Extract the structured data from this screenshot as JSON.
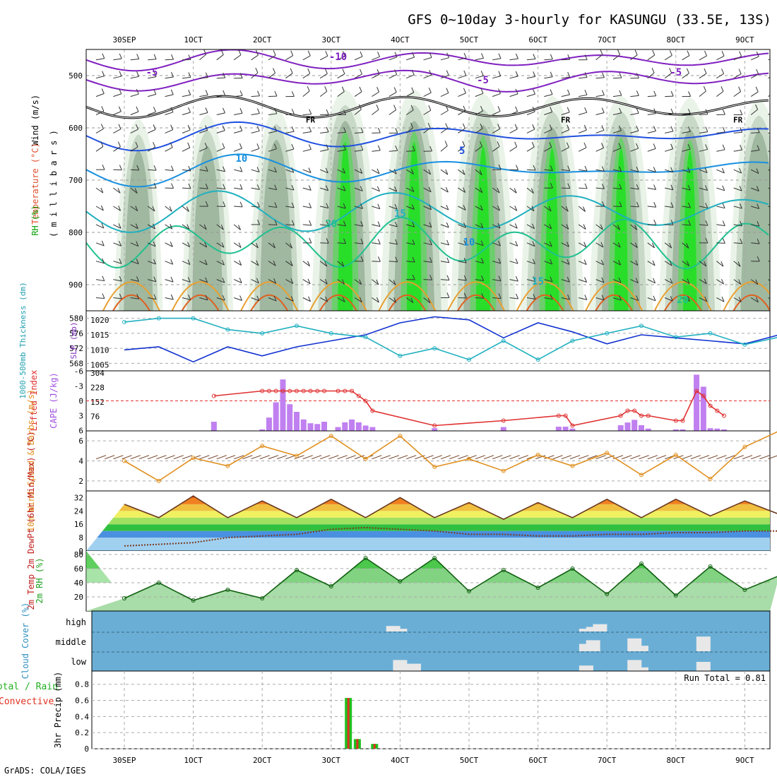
{
  "title": "GFS 0~10day 3-hourly for KASUNGU (33.5E, 13S)",
  "credit": "GrADS: COLA/IGES",
  "colors": {
    "rh_green_dark": "#00cc00",
    "rh_green_mid": "#66cc66",
    "rh_grey": "#b8c6b8",
    "temp_warm": "#e89000",
    "temp_cool": "#2040d0",
    "temp_cold": "#8020c0",
    "slp": "#1030d0",
    "thickness": "#20b0c0",
    "cape": "#c080f0",
    "lifted_index": "#e03030",
    "wind_speed": "#e09020",
    "cloud_bg": "#6aaed6",
    "precip_total": "#20c020",
    "precip_conv": "#e03020"
  },
  "x_axis": {
    "top_labels": [
      "30SEP",
      "1OCT",
      "2OCT",
      "3OCT",
      "4OCT",
      "5OCT",
      "6OCT",
      "7OCT",
      "8OCT",
      "9OCT"
    ],
    "bottom_labels": [
      "30SEP",
      "1OCT",
      "2OCT",
      "3OCT",
      "4OCT",
      "5OCT",
      "6OCT",
      "7OCT",
      "8OCT",
      "9OCT"
    ]
  },
  "chart_data": [
    {
      "type": "heatmap",
      "panel": "upper_air",
      "ylabel_parts": [
        "Wind (m/s)",
        "Temperature (°C)",
        "RH (%)",
        "( m i l l i b a r s )"
      ],
      "y_ticks": [
        "500",
        "600",
        "700",
        "800",
        "900"
      ],
      "ylim": [
        950,
        450
      ],
      "contour_labels": [
        {
          "text": "-10",
          "day": 3.1,
          "p": 470
        },
        {
          "text": "-5",
          "day": 0.4,
          "p": 500
        },
        {
          "text": "-5",
          "day": 5.2,
          "p": 515
        },
        {
          "text": "-5",
          "day": 8.0,
          "p": 500
        },
        {
          "text": "FR",
          "day": 2.7,
          "p": 590
        },
        {
          "text": "FR",
          "day": 6.4,
          "p": 590
        },
        {
          "text": "FR",
          "day": 8.9,
          "p": 590
        },
        {
          "text": "10",
          "day": 1.7,
          "p": 665
        },
        {
          "text": "5",
          "day": 4.9,
          "p": 650
        },
        {
          "text": "15",
          "day": 4.0,
          "p": 770
        },
        {
          "text": "10",
          "day": 5.0,
          "p": 825
        },
        {
          "text": "20",
          "day": 3.0,
          "p": 790
        },
        {
          "text": "15",
          "day": 6.0,
          "p": 900
        },
        {
          "text": "20",
          "day": 8.1,
          "p": 935
        }
      ]
    },
    {
      "type": "line",
      "panel": "slp_thickness",
      "ylabel_left": "1000-500mb Thickness (dm)",
      "ylabel_right": "SLP (mb)",
      "left_ticks": [
        "580",
        "576",
        "572",
        "568"
      ],
      "right_ticks": [
        "1020",
        "1015",
        "1010",
        "1005"
      ],
      "x": [
        0,
        0.5,
        1,
        1.5,
        2,
        2.5,
        3,
        3.5,
        4,
        4.5,
        5,
        5.5,
        6,
        6.5,
        7,
        7.5,
        8,
        8.5,
        9,
        9.5
      ],
      "series": [
        {
          "name": "SLP (mb)",
          "values": [
            1010,
            1011,
            1006,
            1011,
            1008,
            1011,
            1013,
            1015,
            1019,
            1021,
            1020,
            1014,
            1019,
            1016,
            1012,
            1015,
            1014,
            1013,
            1012,
            1015
          ]
        },
        {
          "name": "Thickness (dm)",
          "values": [
            579,
            580,
            580,
            577,
            576,
            578,
            576,
            575,
            570,
            572,
            569,
            574,
            569,
            574,
            576,
            578,
            575,
            576,
            573,
            575
          ]
        }
      ]
    },
    {
      "type": "bar",
      "panel": "cape_li",
      "ylabel_left": "Lifted Index",
      "ylabel_right": "CAPE (J/kg)",
      "left_ticks": [
        "-6",
        "-3",
        "0",
        "3",
        "6"
      ],
      "right_ticks": [
        "304",
        "228",
        "152",
        "76"
      ],
      "categories": [
        1.3,
        2.0,
        2.1,
        2.2,
        2.3,
        2.4,
        2.5,
        2.6,
        2.7,
        2.8,
        2.9,
        3.1,
        3.2,
        3.3,
        3.4,
        3.5,
        3.6,
        4.5,
        5.5,
        6.3,
        6.4,
        6.5,
        7.2,
        7.3,
        7.4,
        7.5,
        7.6,
        8.0,
        8.1,
        8.3,
        8.4,
        8.5,
        8.6,
        8.7
      ],
      "series": [
        {
          "name": "CAPE (J/kg)",
          "values": [
            48,
            8,
            70,
            150,
            270,
            140,
            100,
            60,
            40,
            36,
            48,
            20,
            45,
            60,
            45,
            28,
            20,
            14,
            20,
            22,
            22,
            12,
            30,
            44,
            58,
            30,
            12,
            8,
            8,
            295,
            232,
            14,
            12,
            8
          ]
        },
        {
          "name": "Lifted Index",
          "values": [
            -1,
            -2,
            -2,
            -2,
            -2,
            -2,
            -2,
            -2,
            -2,
            -2,
            -2,
            -2,
            -2,
            -2,
            -1,
            0,
            2,
            5,
            4,
            3,
            3,
            5,
            3,
            2,
            2,
            3,
            3,
            4,
            4,
            -2,
            -1,
            1,
            2,
            3
          ]
        }
      ]
    },
    {
      "type": "line",
      "panel": "wind10m",
      "ylabel": "10m Wind Speed & Barbs (m/s)",
      "y_ticks": [
        "6",
        "4",
        "2"
      ],
      "ylim": [
        1,
        7
      ],
      "x": [
        0,
        0.5,
        1,
        1.5,
        2,
        2.5,
        3,
        3.5,
        4,
        4.5,
        5,
        5.5,
        6,
        6.5,
        7,
        7.5,
        8,
        8.5,
        9,
        9.5
      ],
      "series": [
        {
          "name": "Wind speed",
          "values": [
            4,
            2,
            4.3,
            3.5,
            5.5,
            4.5,
            6.5,
            4.2,
            6.5,
            3.4,
            4.2,
            3,
            4.6,
            3.5,
            4.8,
            2.6,
            4.6,
            2.2,
            5.4,
            7
          ]
        }
      ]
    },
    {
      "type": "area",
      "panel": "temp2m",
      "ylabel": "2m Temp 2m DewPt (6hr Min/Max) (°C)",
      "y_ticks": [
        "32",
        "24",
        "16",
        "8",
        "0"
      ],
      "ylim": [
        0,
        36
      ],
      "x": [
        0,
        0.5,
        1,
        1.5,
        2,
        2.5,
        3,
        3.5,
        4,
        4.5,
        5,
        5.5,
        6,
        6.5,
        7,
        7.5,
        8,
        8.5,
        9,
        9.5
      ],
      "series": [
        {
          "name": "2m Temp",
          "values": [
            28,
            20,
            33,
            20,
            30,
            20,
            31,
            20,
            32,
            20,
            29,
            19,
            29,
            20,
            31,
            20,
            31,
            21,
            30,
            22
          ]
        },
        {
          "name": "2m DewPt",
          "values": [
            3,
            4,
            5,
            8,
            9,
            10,
            13,
            14,
            13,
            12,
            10,
            10,
            9,
            9,
            10,
            10,
            11,
            11,
            12,
            12
          ]
        }
      ]
    },
    {
      "type": "area",
      "panel": "rh2m",
      "ylabel": "2m RH (%)",
      "y_ticks": [
        "80",
        "60",
        "40",
        "20"
      ],
      "ylim": [
        0,
        85
      ],
      "x": [
        0,
        0.5,
        1,
        1.5,
        2,
        2.5,
        3,
        3.5,
        4,
        4.5,
        5,
        5.5,
        6,
        6.5,
        7,
        7.5,
        8,
        8.5,
        9,
        9.5
      ],
      "series": [
        {
          "name": "2m RH",
          "values": [
            18,
            40,
            15,
            30,
            18,
            58,
            35,
            75,
            42,
            75,
            28,
            58,
            33,
            60,
            24,
            67,
            22,
            63,
            30,
            50
          ]
        }
      ]
    },
    {
      "type": "bar",
      "panel": "cloud",
      "ylabel": "Cloud Cover (%)",
      "levels": [
        "high",
        "middle",
        "low"
      ],
      "categories": [
        3.9,
        4.0,
        4.2,
        6.7,
        6.8,
        6.9,
        7.4,
        7.5,
        8.4
      ],
      "series": [
        {
          "name": "high",
          "values": [
            30,
            15,
            0,
            15,
            25,
            40,
            0,
            0,
            0
          ]
        },
        {
          "name": "middle",
          "values": [
            0,
            0,
            0,
            40,
            60,
            0,
            70,
            30,
            80
          ]
        },
        {
          "name": "low",
          "values": [
            0,
            60,
            40,
            30,
            0,
            0,
            60,
            20,
            50
          ]
        }
      ]
    },
    {
      "type": "bar",
      "panel": "precip",
      "ylabel": "3hr Precip (mm)",
      "legend_left": [
        "Total / Rain",
        "Convective"
      ],
      "run_total": "Run Total = 0.81",
      "y_ticks": [
        "0.8",
        "0.6",
        "0.4",
        "0.2",
        "0"
      ],
      "ylim": [
        0,
        0.92
      ],
      "categories": [
        3.25,
        3.38,
        3.63
      ],
      "series": [
        {
          "name": "Total",
          "values": [
            0.63,
            0.12,
            0.06
          ]
        },
        {
          "name": "Convective",
          "values": [
            0.63,
            0.12,
            0.06
          ]
        }
      ]
    }
  ]
}
